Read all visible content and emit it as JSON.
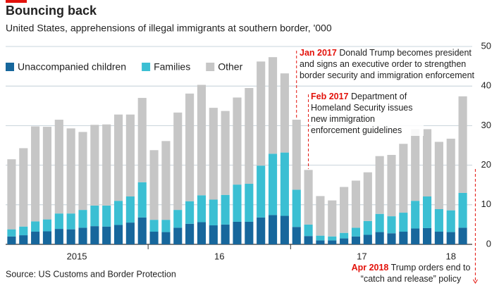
{
  "chart_data": {
    "type": "stacked_bar",
    "title": "Bouncing back",
    "subtitle": "United States, apprehensions of illegal immigrants at southern border, '000",
    "source": "Source: US Customs and Border Protection",
    "categories": [
      null,
      null,
      null,
      null,
      null,
      null,
      null,
      null,
      null,
      null,
      null,
      null,
      null,
      null,
      null,
      null,
      null,
      null,
      null,
      null,
      null,
      null,
      null,
      null,
      null,
      null,
      null,
      null,
      null,
      null,
      null,
      null,
      null,
      null,
      null,
      null,
      null,
      null,
      null
    ],
    "xticks": [
      {
        "value": 5.5,
        "label": "2015"
      },
      {
        "value": 17.5,
        "label": "16"
      },
      {
        "value": 29.5,
        "label": "17"
      },
      {
        "value": 37,
        "label": "18"
      }
    ],
    "series": [
      {
        "name": "Unaccompanied children",
        "color": "#17679c",
        "values": [
          2.0,
          2.3,
          3.2,
          3.3,
          3.9,
          3.8,
          4.2,
          4.6,
          4.5,
          4.9,
          5.5,
          6.8,
          3.2,
          3.1,
          4.2,
          5.2,
          5.6,
          4.8,
          5.0,
          5.7,
          5.7,
          6.8,
          7.4,
          7.2,
          4.4,
          2.1,
          1.0,
          1.0,
          1.5,
          2.0,
          2.4,
          3.1,
          2.8,
          3.2,
          4.0,
          4.1,
          3.2,
          3.1,
          4.2
        ]
      },
      {
        "name": "Families",
        "color": "#3bbfd3",
        "values": [
          1.8,
          2.2,
          2.6,
          3.0,
          3.9,
          4.0,
          4.5,
          5.2,
          5.3,
          6.1,
          6.6,
          8.9,
          3.0,
          3.1,
          4.5,
          5.7,
          6.8,
          6.5,
          7.5,
          9.4,
          9.6,
          13.1,
          15.5,
          16.0,
          9.4,
          2.9,
          1.2,
          1.0,
          1.4,
          2.2,
          3.5,
          4.6,
          4.3,
          4.8,
          7.0,
          8.0,
          5.7,
          5.5,
          8.8
        ]
      },
      {
        "name": "Other",
        "color": "#c6c6c6",
        "values": [
          17.7,
          19.8,
          24.0,
          23.4,
          23.7,
          21.5,
          19.7,
          20.4,
          20.5,
          21.8,
          20.7,
          21.3,
          17.6,
          19.9,
          24.6,
          27.2,
          27.9,
          23.2,
          21.2,
          22.0,
          24.2,
          26.3,
          24.4,
          20.0,
          17.7,
          13.8,
          10.0,
          9.1,
          11.6,
          11.9,
          12.3,
          14.6,
          15.5,
          17.4,
          18.1,
          17.0,
          17.0,
          18.1,
          24.4
        ]
      }
    ],
    "ylim": [
      0,
      50
    ],
    "yticks": [
      0,
      10,
      20,
      30,
      40,
      50
    ],
    "grid": true,
    "annotations": [
      {
        "date": "Jan 2017",
        "text": "Donald Trump becomes president and signs an executive order to strengthen border security and immigration enforcement"
      },
      {
        "date": "Feb 2017",
        "text": "Department of Homeland Security issues new immigration enforcement guidelines"
      },
      {
        "date": "Apr 2018",
        "text": "Trump orders end to “catch and release” policy"
      }
    ]
  }
}
